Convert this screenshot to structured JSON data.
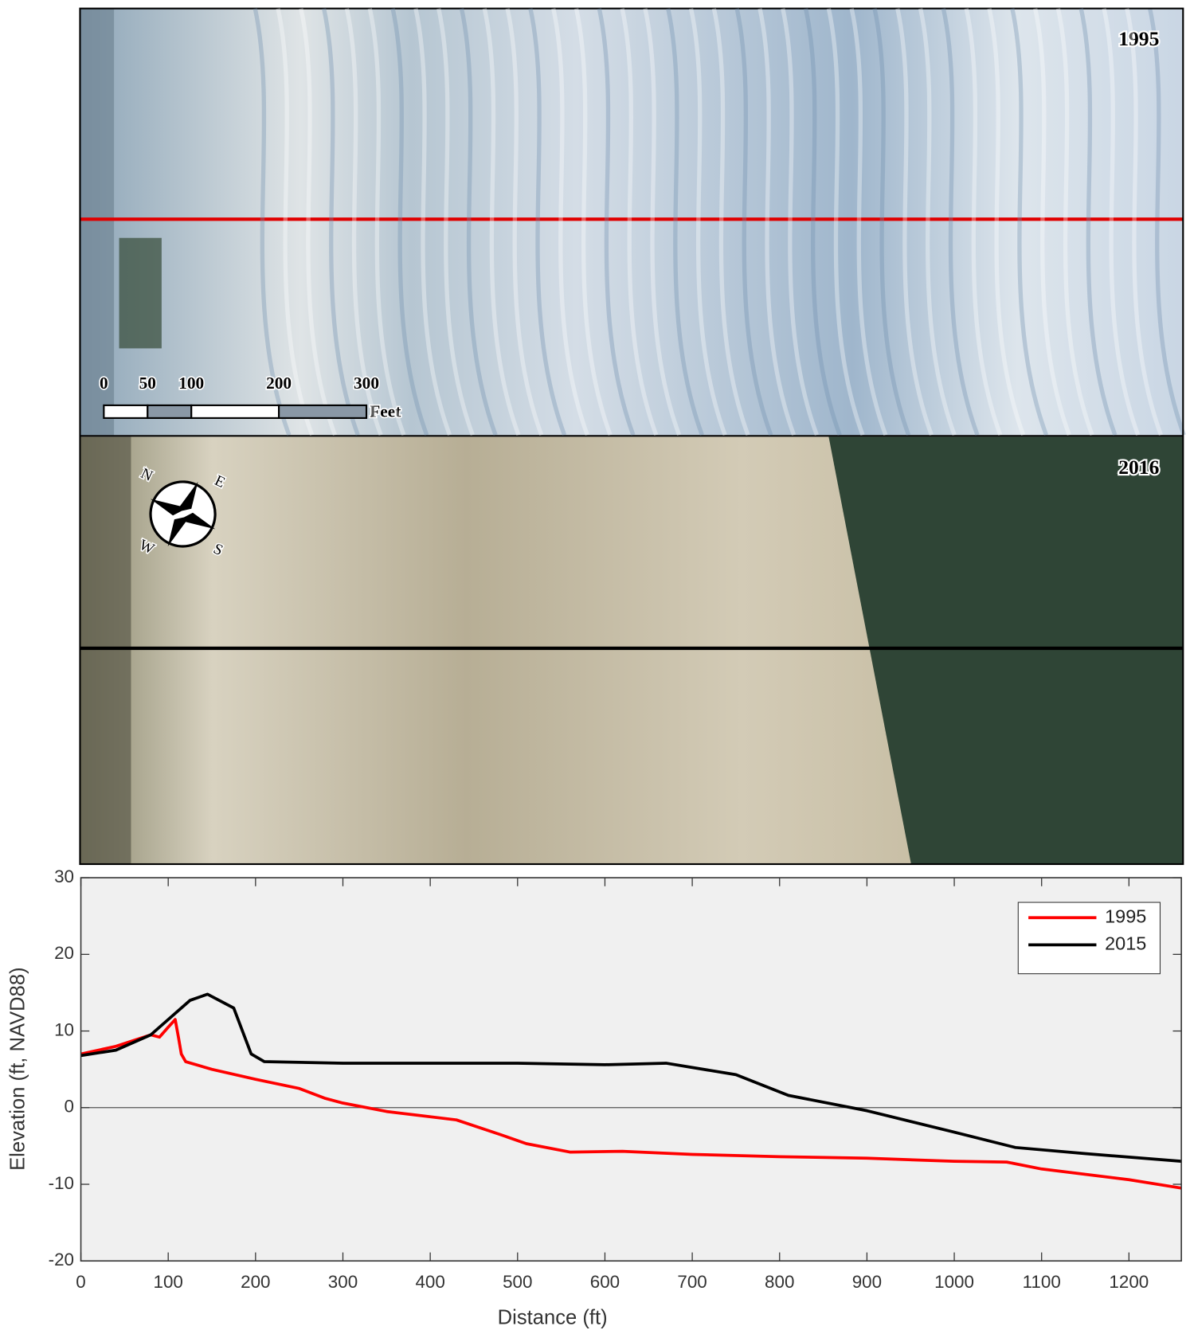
{
  "images": [
    {
      "label": "1995"
    },
    {
      "label": "2016"
    }
  ],
  "scale_bar": {
    "ticks": [
      0,
      50,
      100,
      200,
      300
    ],
    "unit": "Feet"
  },
  "compass": [
    "N",
    "E",
    "S",
    "W"
  ],
  "chart_data": {
    "type": "line",
    "xlabel": "Distance (ft)",
    "ylabel": "Elevation (ft, NAVD88)",
    "xlim": [
      0,
      1260
    ],
    "ylim": [
      -20,
      30
    ],
    "xticks": [
      0,
      100,
      200,
      300,
      400,
      500,
      600,
      700,
      800,
      900,
      1000,
      1100,
      1200
    ],
    "yticks": [
      -20,
      -10,
      0,
      10,
      20,
      30
    ],
    "hlines": [
      0
    ],
    "legend": "upper right",
    "grid": false,
    "series": [
      {
        "name": "1995",
        "color": "#ff0000",
        "x": [
          0,
          40,
          80,
          90,
          100,
          108,
          112,
          115,
          120,
          150,
          200,
          250,
          280,
          300,
          350,
          430,
          480,
          510,
          560,
          620,
          700,
          800,
          900,
          1000,
          1060,
          1100,
          1200,
          1260
        ],
        "values": [
          7,
          8,
          9.5,
          9.2,
          10.5,
          11.5,
          9,
          7,
          6,
          5,
          3.7,
          2.5,
          1.2,
          0.6,
          -0.5,
          -1.6,
          -3.5,
          -4.7,
          -5.8,
          -5.7,
          -6.1,
          -6.4,
          -6.6,
          -7.0,
          -7.1,
          -8,
          -9.4,
          -10.5
        ]
      },
      {
        "name": "2015",
        "color": "#000000",
        "x": [
          0,
          40,
          80,
          100,
          125,
          145,
          175,
          195,
          210,
          300,
          400,
          500,
          600,
          670,
          750,
          810,
          900,
          1000,
          1070,
          1150,
          1260
        ],
        "values": [
          6.8,
          7.5,
          9.5,
          11.5,
          14,
          14.8,
          13,
          7,
          6,
          5.8,
          5.8,
          5.8,
          5.6,
          5.8,
          4.3,
          1.6,
          -0.4,
          -3.2,
          -5.2,
          -6,
          -7
        ]
      }
    ]
  }
}
